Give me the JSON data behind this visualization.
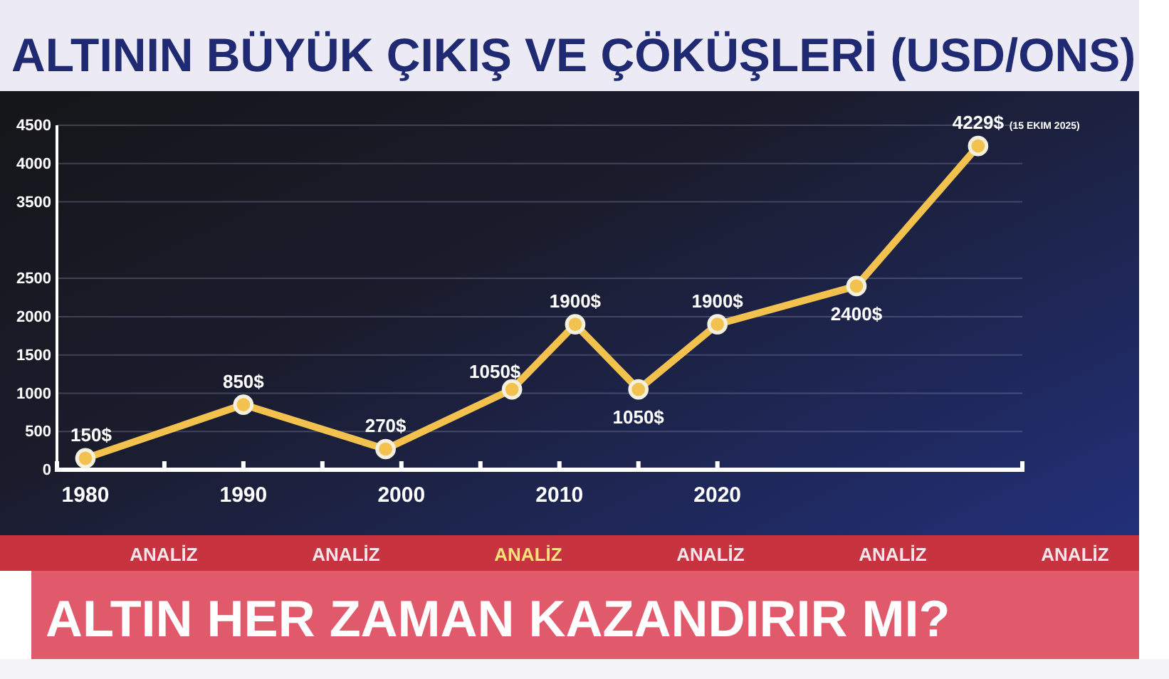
{
  "chart_data": {
    "type": "line",
    "title": "ALTININ BÜYÜK ÇIKIŞ VE ÇÖKÜŞLERİ (USD/ONS)",
    "x": [
      1980,
      1990,
      1999,
      2007,
      2011,
      2015,
      2020,
      2028.8,
      2036.5
    ],
    "series": [
      {
        "color": "#f2c14e",
        "values": [
          150,
          850,
          270,
          1050,
          1900,
          1050,
          1900,
          2400,
          4229
        ],
        "value_labels": [
          "150$",
          "850$",
          "270$",
          "1050$",
          "1900$",
          "1050$",
          "1900$",
          "2400$",
          "4229$"
        ]
      }
    ],
    "xlim": [
      1978.2,
      2039.3
    ],
    "xticks": [
      1980,
      {
        "value": 1985,
        "label": null
      },
      1990,
      {
        "value": 1995,
        "label": null
      },
      2000,
      {
        "value": 2005,
        "label": null
      },
      2010,
      {
        "value": 2015,
        "label": null
      },
      2020
    ],
    "ylim": [
      0,
      4500
    ],
    "yticks": [
      0,
      500,
      1000,
      1500,
      2000,
      2500,
      3500,
      4000,
      4500
    ],
    "grid": "y",
    "marker": "circle",
    "line_style": "solid",
    "annotations": [
      "(15 EKIM 2025)",
      "ANALİZ",
      "ANALİZ",
      "ANALİZ",
      "ANALİZ",
      "ANALİZ",
      "ANALİZ",
      "ALTIN HER ZAMAN KAZANDIRIR MI?"
    ]
  }
}
